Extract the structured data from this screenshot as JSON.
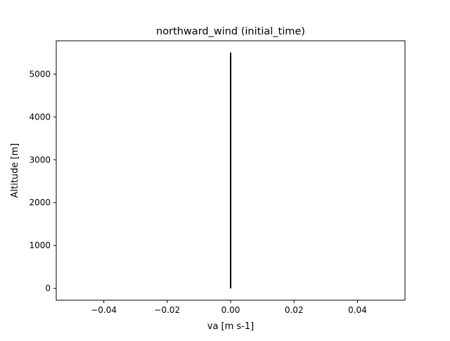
{
  "chart_data": {
    "type": "line",
    "title": "northward_wind (initial_time)",
    "xlabel": "va [m s-1]",
    "ylabel": "Altitude [m]",
    "xlim": [
      -0.055,
      0.055
    ],
    "ylim": [
      -275,
      5775
    ],
    "xticks": [
      -0.04,
      -0.02,
      0.0,
      0.02,
      0.04
    ],
    "xtick_labels": [
      "−0.04",
      "−0.02",
      "0.00",
      "0.02",
      "0.04"
    ],
    "yticks": [
      0,
      1000,
      2000,
      3000,
      4000,
      5000
    ],
    "ytick_labels": [
      "0",
      "1000",
      "2000",
      "3000",
      "4000",
      "5000"
    ],
    "grid": false,
    "series": [
      {
        "color": "#000000",
        "x": [
          0,
          0
        ],
        "y": [
          0,
          5500
        ]
      }
    ]
  }
}
